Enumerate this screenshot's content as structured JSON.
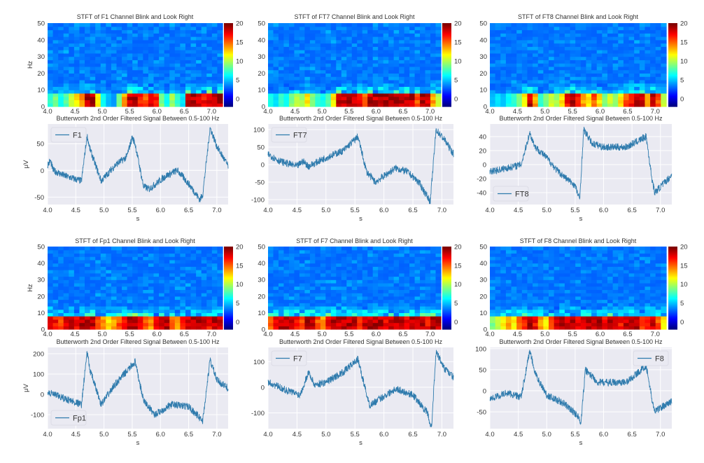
{
  "chart_data": [
    {
      "type": "heatmap",
      "title": "STFT of F1 Channel Blink and Look Right",
      "ylabel": "Hz",
      "xlim": [
        4.0,
        7.2
      ],
      "ylim": [
        0,
        50
      ],
      "yticks": [
        0,
        10,
        20,
        30,
        40,
        50
      ],
      "xticks": [
        "4.0",
        "4.5",
        "5.0",
        "5.5",
        "6.0",
        "6.5",
        "7.0"
      ],
      "colorbar": {
        "ticks": [
          0,
          5,
          10,
          15,
          20
        ],
        "clim": [
          -2,
          20
        ],
        "colormap": "jet"
      },
      "band_0_8hz_power": [
        6,
        8,
        5,
        7,
        10,
        12,
        14,
        20,
        20,
        12,
        5,
        3,
        2,
        8,
        14,
        20,
        20,
        18,
        16,
        20,
        18,
        8,
        5,
        9,
        6,
        4,
        20,
        20,
        20,
        18,
        20,
        20,
        20
      ]
    },
    {
      "type": "line",
      "title": "Butterworth 2nd Order Filtered Signal Between 0.5-100 Hz",
      "xlabel": "s",
      "ylabel": "μV",
      "xlim": [
        4.0,
        7.2
      ],
      "ylim": [
        -64,
        87
      ],
      "yticks": [
        -50,
        0,
        50
      ],
      "xticks": [
        "4.0",
        "4.5",
        "5.0",
        "5.5",
        "6.0",
        "6.5",
        "7.0"
      ],
      "legend": "top-left",
      "series": [
        {
          "name": "F1",
          "color": "#2f7bad",
          "points": [
            [
              4.0,
              10
            ],
            [
              4.05,
              18
            ],
            [
              4.1,
              0
            ],
            [
              4.3,
              -10
            ],
            [
              4.6,
              -20
            ],
            [
              4.7,
              65
            ],
            [
              4.75,
              40
            ],
            [
              4.95,
              -20
            ],
            [
              5.2,
              10
            ],
            [
              5.4,
              25
            ],
            [
              5.5,
              62
            ],
            [
              5.55,
              50
            ],
            [
              5.7,
              -30
            ],
            [
              5.8,
              -35
            ],
            [
              6.1,
              -10
            ],
            [
              6.3,
              0
            ],
            [
              6.5,
              -25
            ],
            [
              6.7,
              -55
            ],
            [
              6.75,
              -45
            ],
            [
              6.88,
              80
            ],
            [
              7.0,
              45
            ],
            [
              7.2,
              8
            ]
          ]
        }
      ]
    },
    {
      "type": "heatmap",
      "title": "STFT of FT7 Channel Blink and Look Right",
      "xlim": [
        4.0,
        7.2
      ],
      "ylim": [
        0,
        50
      ],
      "yticks": [
        0,
        10,
        20,
        30,
        40,
        50
      ],
      "xticks": [
        "4.0",
        "4.5",
        "5.0",
        "5.5",
        "6.0",
        "6.5",
        "7.0"
      ],
      "colorbar": {
        "ticks": [
          0,
          5,
          10,
          15,
          20
        ],
        "clim": [
          -2,
          20
        ],
        "colormap": "jet"
      },
      "band_0_8hz_power": [
        5,
        4,
        6,
        5,
        8,
        10,
        9,
        12,
        8,
        6,
        5,
        7,
        12,
        20,
        20,
        20,
        20,
        18,
        16,
        20,
        20,
        20,
        20,
        20,
        20,
        20,
        20,
        20,
        16,
        20,
        20,
        14,
        10
      ]
    },
    {
      "type": "line",
      "title": "Butterworth 2nd Order Filtered Signal Between 0.5-100 Hz",
      "xlabel": "s",
      "xlim": [
        4.0,
        7.2
      ],
      "ylim": [
        -114,
        116
      ],
      "yticks": [
        -100,
        -50,
        0,
        50,
        100
      ],
      "xticks": [
        "4.0",
        "4.5",
        "5.0",
        "5.5",
        "6.0",
        "6.5",
        "7.0"
      ],
      "legend": "top-left",
      "series": [
        {
          "name": "FT7",
          "color": "#2f7bad",
          "points": [
            [
              4.0,
              30
            ],
            [
              4.2,
              10
            ],
            [
              4.5,
              -5
            ],
            [
              4.6,
              10
            ],
            [
              4.7,
              -5
            ],
            [
              5.0,
              20
            ],
            [
              5.3,
              40
            ],
            [
              5.55,
              80
            ],
            [
              5.7,
              -20
            ],
            [
              5.85,
              -50
            ],
            [
              6.2,
              -10
            ],
            [
              6.4,
              -20
            ],
            [
              6.6,
              -50
            ],
            [
              6.8,
              -105
            ],
            [
              6.9,
              100
            ],
            [
              7.05,
              70
            ],
            [
              7.2,
              30
            ]
          ]
        }
      ]
    },
    {
      "type": "heatmap",
      "title": "STFT of FT8 Channel Blink and Look Right",
      "xlim": [
        4.0,
        7.2
      ],
      "ylim": [
        0,
        50
      ],
      "yticks": [
        0,
        10,
        20,
        30,
        40,
        50
      ],
      "xticks": [
        "4.0",
        "4.5",
        "5.0",
        "5.5",
        "6.0",
        "6.5",
        "7.0"
      ],
      "colorbar": {
        "ticks": [
          0,
          5,
          10,
          15,
          20
        ],
        "clim": [
          -2,
          20
        ],
        "colormap": "jet"
      },
      "band_0_8hz_power": [
        3,
        4,
        3,
        5,
        6,
        8,
        12,
        20,
        14,
        6,
        8,
        10,
        9,
        12,
        18,
        20,
        18,
        14,
        12,
        16,
        12,
        8,
        10,
        9,
        12,
        16,
        18,
        20,
        20,
        14,
        20,
        16,
        10
      ]
    },
    {
      "type": "line",
      "title": "Butterworth 2nd Order Filtered Signal Between 0.5-100 Hz",
      "xlabel": "s",
      "xlim": [
        4.0,
        7.2
      ],
      "ylim": [
        -57,
        58
      ],
      "yticks": [
        -40,
        -20,
        0,
        20,
        40
      ],
      "xticks": [
        "4.0",
        "4.5",
        "5.0",
        "5.5",
        "6.0",
        "6.5",
        "7.0"
      ],
      "legend": "bottom-left",
      "series": [
        {
          "name": "FT8",
          "color": "#2f7bad",
          "points": [
            [
              4.0,
              -10
            ],
            [
              4.3,
              -5
            ],
            [
              4.55,
              0
            ],
            [
              4.7,
              45
            ],
            [
              4.8,
              25
            ],
            [
              5.0,
              10
            ],
            [
              5.2,
              -10
            ],
            [
              5.5,
              -30
            ],
            [
              5.58,
              -50
            ],
            [
              5.65,
              50
            ],
            [
              5.8,
              30
            ],
            [
              6.0,
              25
            ],
            [
              6.4,
              25
            ],
            [
              6.75,
              40
            ],
            [
              6.85,
              -20
            ],
            [
              6.9,
              -40
            ],
            [
              7.2,
              -15
            ]
          ]
        }
      ]
    },
    {
      "type": "heatmap",
      "title": "STFT of Fp1 Channel Blink and Look Right",
      "ylabel": "Hz",
      "xlim": [
        4.0,
        7.2
      ],
      "ylim": [
        0,
        50
      ],
      "yticks": [
        0,
        10,
        20,
        30,
        40,
        50
      ],
      "xticks": [
        "4.0",
        "4.5",
        "5.0",
        "5.5",
        "6.0",
        "6.5",
        "7.0"
      ],
      "colorbar": {
        "ticks": [
          0,
          5,
          10,
          15,
          20
        ],
        "clim": [
          -2,
          20
        ],
        "colormap": "jet"
      },
      "band_0_8hz_power": [
        20,
        18,
        16,
        20,
        20,
        18,
        20,
        20,
        20,
        16,
        14,
        12,
        14,
        16,
        18,
        20,
        20,
        18,
        16,
        14,
        18,
        20,
        20,
        16,
        14,
        18,
        20,
        20,
        20,
        20,
        18,
        20,
        20
      ]
    },
    {
      "type": "line",
      "title": "Butterworth 2nd Order Filtered Signal Between 0.5-100 Hz",
      "xlabel": "s",
      "ylabel": "μV",
      "xlim": [
        4.0,
        7.2
      ],
      "ylim": [
        -169,
        231
      ],
      "yticks": [
        -100,
        0,
        100,
        200
      ],
      "xticks": [
        "4.0",
        "4.5",
        "5.0",
        "5.5",
        "6.0",
        "6.5",
        "7.0"
      ],
      "legend": "bottom-left",
      "series": [
        {
          "name": "Fp1",
          "color": "#2f7bad",
          "points": [
            [
              4.0,
              10
            ],
            [
              4.3,
              -20
            ],
            [
              4.6,
              -50
            ],
            [
              4.7,
              210
            ],
            [
              4.75,
              120
            ],
            [
              4.95,
              -50
            ],
            [
              5.2,
              50
            ],
            [
              5.55,
              160
            ],
            [
              5.7,
              -30
            ],
            [
              5.9,
              -100
            ],
            [
              6.2,
              -50
            ],
            [
              6.5,
              -60
            ],
            [
              6.75,
              -130
            ],
            [
              6.88,
              170
            ],
            [
              7.0,
              70
            ],
            [
              7.2,
              30
            ]
          ]
        }
      ]
    },
    {
      "type": "heatmap",
      "title": "STFT of F7 Channel Blink and Look Right",
      "xlim": [
        4.0,
        7.2
      ],
      "ylim": [
        0,
        50
      ],
      "yticks": [
        0,
        10,
        20,
        30,
        40,
        50
      ],
      "xticks": [
        "4.0",
        "4.5",
        "5.0",
        "5.5",
        "6.0",
        "6.5",
        "7.0"
      ],
      "colorbar": {
        "ticks": [
          0,
          5,
          10,
          15,
          20
        ],
        "clim": [
          -2,
          20
        ],
        "colormap": "jet"
      },
      "band_0_8hz_power": [
        16,
        18,
        20,
        20,
        20,
        18,
        16,
        20,
        20,
        16,
        14,
        18,
        20,
        20,
        20,
        20,
        20,
        18,
        20,
        20,
        20,
        20,
        18,
        20,
        20,
        20,
        18,
        20,
        20,
        20,
        18,
        20,
        20
      ]
    },
    {
      "type": "line",
      "title": "Butterworth 2nd Order Filtered Signal Between 0.5-100 Hz",
      "xlabel": "s",
      "xlim": [
        4.0,
        7.2
      ],
      "ylim": [
        -162,
        156
      ],
      "yticks": [
        -100,
        0,
        100
      ],
      "xticks": [
        "4.0",
        "4.5",
        "5.0",
        "5.5",
        "6.0",
        "6.5",
        "7.0"
      ],
      "legend": "top-left",
      "series": [
        {
          "name": "F7",
          "color": "#2f7bad",
          "points": [
            [
              4.0,
              20
            ],
            [
              4.3,
              -10
            ],
            [
              4.55,
              -30
            ],
            [
              4.7,
              60
            ],
            [
              4.8,
              10
            ],
            [
              5.0,
              20
            ],
            [
              5.3,
              60
            ],
            [
              5.55,
              110
            ],
            [
              5.75,
              -70
            ],
            [
              5.9,
              -50
            ],
            [
              6.2,
              -5
            ],
            [
              6.5,
              -30
            ],
            [
              6.75,
              -100
            ],
            [
              6.82,
              -160
            ],
            [
              6.9,
              140
            ],
            [
              7.05,
              70
            ],
            [
              7.2,
              40
            ]
          ]
        }
      ]
    },
    {
      "type": "heatmap",
      "title": "STFT of F8 Channel Blink and Look Right",
      "xlim": [
        4.0,
        7.2
      ],
      "ylim": [
        0,
        50
      ],
      "yticks": [
        0,
        10,
        20,
        30,
        40,
        50
      ],
      "xticks": [
        "4.0",
        "4.5",
        "5.0",
        "5.5",
        "6.0",
        "6.5",
        "7.0"
      ],
      "colorbar": {
        "ticks": [
          0,
          5,
          10,
          15,
          20
        ],
        "clim": [
          -2,
          20
        ],
        "colormap": "jet"
      },
      "band_0_8hz_power": [
        8,
        10,
        12,
        14,
        12,
        16,
        18,
        20,
        18,
        14,
        12,
        16,
        20,
        20,
        20,
        20,
        18,
        20,
        20,
        20,
        20,
        18,
        20,
        20,
        18,
        20,
        20,
        20,
        16,
        18,
        20,
        16,
        12
      ]
    },
    {
      "type": "line",
      "title": "Butterworth 2nd Order Filtered Signal Between 0.5-100 Hz",
      "xlabel": "s",
      "xlim": [
        4.0,
        7.2
      ],
      "ylim": [
        -90,
        103
      ],
      "yticks": [
        -50,
        0,
        50,
        100
      ],
      "xticks": [
        "4.0",
        "4.5",
        "5.0",
        "5.5",
        "6.0",
        "6.5",
        "7.0"
      ],
      "legend": "top-right",
      "series": [
        {
          "name": "F8",
          "color": "#2f7bad",
          "points": [
            [
              4.0,
              -20
            ],
            [
              4.3,
              -5
            ],
            [
              4.55,
              -15
            ],
            [
              4.7,
              95
            ],
            [
              4.8,
              40
            ],
            [
              5.0,
              -10
            ],
            [
              5.3,
              -30
            ],
            [
              5.55,
              -60
            ],
            [
              5.6,
              -80
            ],
            [
              5.68,
              50
            ],
            [
              5.9,
              20
            ],
            [
              6.4,
              20
            ],
            [
              6.75,
              60
            ],
            [
              6.85,
              -20
            ],
            [
              6.9,
              -50
            ],
            [
              7.0,
              -40
            ],
            [
              7.2,
              -25
            ]
          ]
        }
      ]
    }
  ]
}
